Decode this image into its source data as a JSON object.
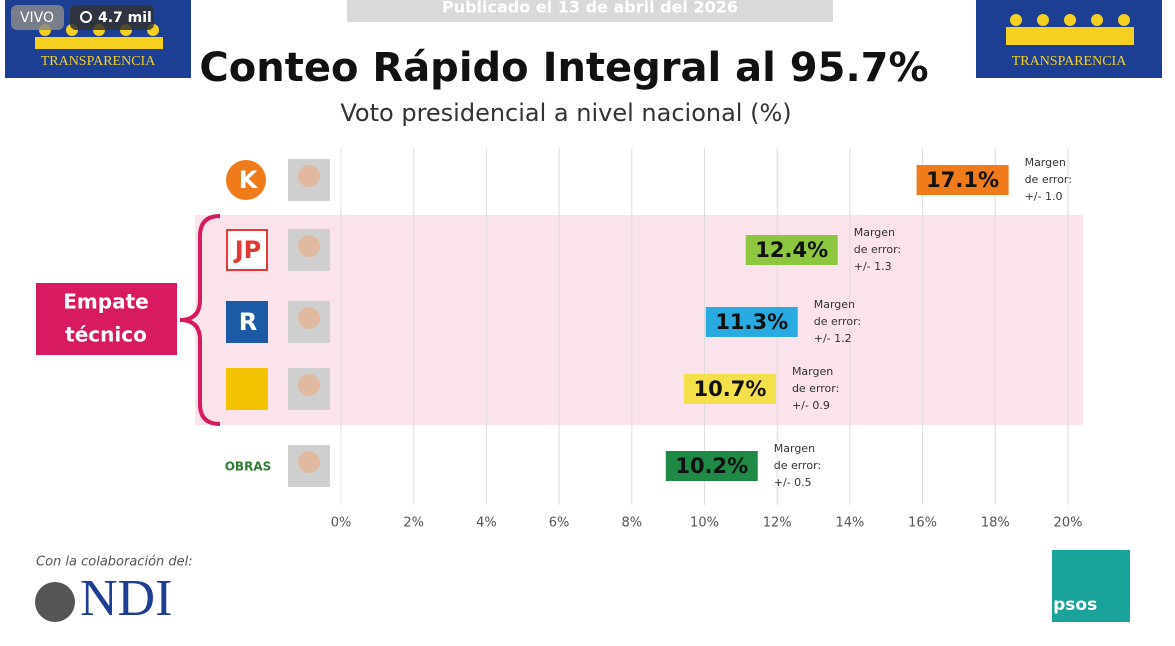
{
  "overlay": {
    "live": "VIVO",
    "views": "4.7 mil",
    "published": "Publicado el 13 de abril del 2026"
  },
  "logos": {
    "left": "TRANSPARENCIA",
    "right": "TRANSPARENCIA",
    "ndi_caption": "Con la colaboración del:",
    "ndi": "NDI",
    "ipsos": "Ipsos"
  },
  "bracket_label": [
    "Empate",
    "técnico"
  ],
  "party_marks": [
    "K",
    "JP",
    "R",
    "",
    "OBRAS"
  ],
  "chart_data": {
    "type": "hbar",
    "title": "Conteo Rápido Integral al 95.7%",
    "subtitle": "Voto presidencial a nivel nacional (%)",
    "values": [
      17.1,
      12.4,
      11.3,
      10.7,
      10.2
    ],
    "value_labels": [
      "17.1%",
      "12.4%",
      "11.3%",
      "10.7%",
      "10.2%"
    ],
    "colors": [
      "#f07b1a",
      "#8dc63f",
      "#29abe2",
      "#f3e04a",
      "#1e8a45"
    ],
    "annotations": [
      [
        "Margen",
        "de error:",
        "+/- 1.0"
      ],
      [
        "Margen",
        "de error:",
        "+/- 1.3"
      ],
      [
        "Margen",
        "de error:",
        "+/- 1.2"
      ],
      [
        "Margen",
        "de error:",
        "+/- 0.9"
      ],
      [
        "Margen",
        "de error:",
        "+/- 0.5"
      ]
    ],
    "xlim": [
      0,
      20
    ],
    "xticks": [
      {
        "value": 0,
        "label": "0%"
      },
      {
        "value": 2,
        "label": "2%"
      },
      {
        "value": 4,
        "label": "4%"
      },
      {
        "value": 6,
        "label": "6%"
      },
      {
        "value": 8,
        "label": "8%"
      },
      {
        "value": 10,
        "label": "10%"
      },
      {
        "value": 12,
        "label": "12%"
      },
      {
        "value": 14,
        "label": "14%"
      },
      {
        "value": 16,
        "label": "16%"
      },
      {
        "value": 18,
        "label": "18%"
      },
      {
        "value": 20,
        "label": "20%"
      }
    ],
    "grid": true
  }
}
